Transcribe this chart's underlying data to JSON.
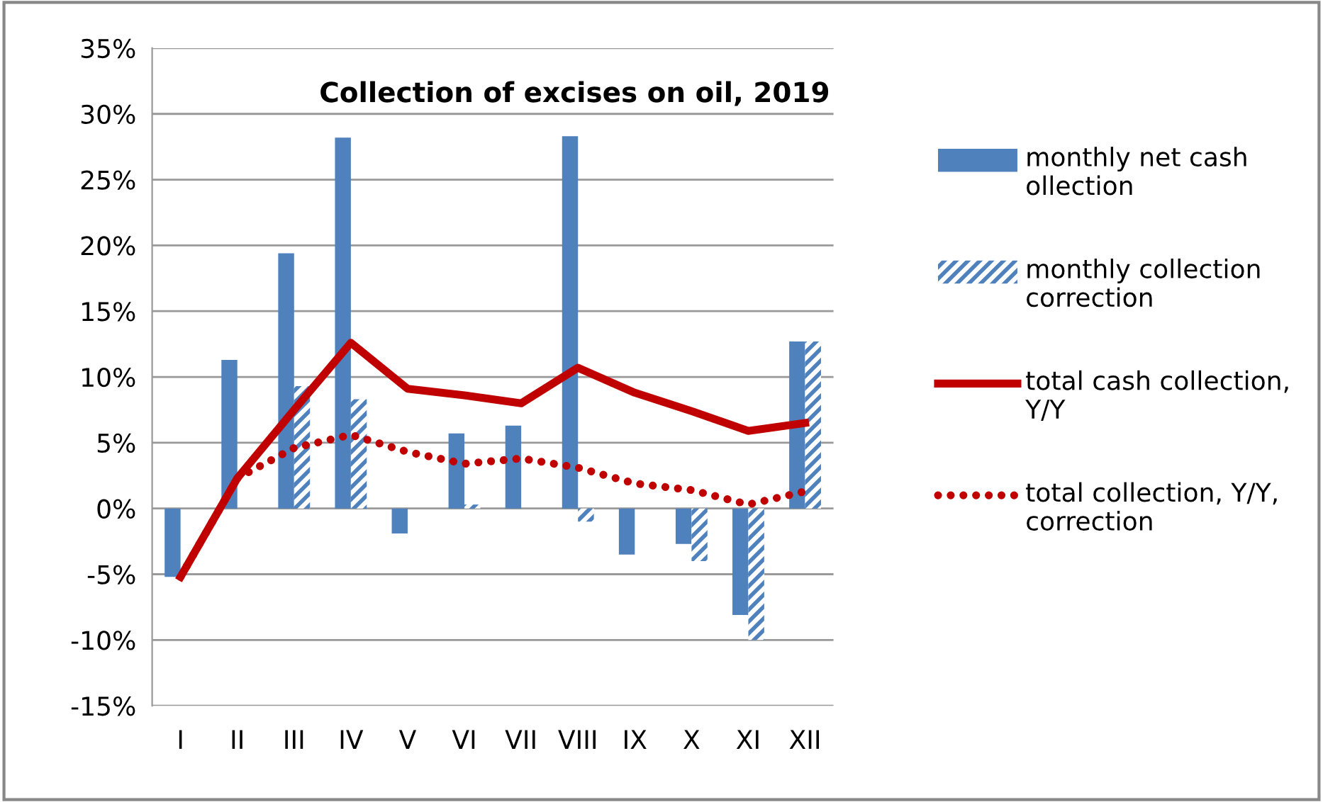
{
  "chart_data": {
    "type": "bar",
    "title": "Collection of excises on oil, 2019",
    "categories": [
      "I",
      "II",
      "III",
      "IV",
      "V",
      "VI",
      "VII",
      "VIII",
      "IX",
      "X",
      "XI",
      "XII"
    ],
    "series": [
      {
        "name": "monthly net cash ollection",
        "color": "#4f81bd",
        "values": [
          -5.2,
          11.3,
          19.4,
          28.2,
          -1.9,
          5.7,
          6.3,
          28.3,
          -3.5,
          -2.7,
          -8.1,
          12.7
        ]
      },
      {
        "name": "monthly collection correction",
        "color": "#4f81bd",
        "values": [
          null,
          null,
          9.3,
          8.3,
          null,
          0.3,
          null,
          -1.0,
          null,
          -4.0,
          -10.0,
          12.7
        ]
      },
      {
        "name": "total cash collection, Y/Y",
        "type": "line",
        "color": "#c00000",
        "line_style": "solid",
        "values": [
          -5.2,
          2.3,
          7.5,
          12.6,
          9.1,
          8.6,
          8.0,
          10.7,
          8.8,
          7.4,
          5.9,
          6.5
        ]
      },
      {
        "name": "total collection, Y/Y, correction",
        "type": "line",
        "color": "#c00000",
        "line_style": "dotted",
        "values": [
          -5.2,
          2.3,
          4.6,
          5.6,
          4.3,
          3.4,
          3.8,
          3.1,
          1.9,
          1.4,
          0.3,
          1.3
        ]
      }
    ],
    "ylim": [
      -15,
      35
    ],
    "yticks": [
      {
        "value": -15,
        "label": "-15%"
      },
      {
        "value": -10,
        "label": "-10%"
      },
      {
        "value": -5,
        "label": "-5%"
      },
      {
        "value": 0,
        "label": "0%"
      },
      {
        "value": 5,
        "label": "5%"
      },
      {
        "value": 10,
        "label": "10%"
      },
      {
        "value": 15,
        "label": "15%"
      },
      {
        "value": 20,
        "label": "20%"
      },
      {
        "value": 25,
        "label": "25%"
      },
      {
        "value": 30,
        "label": "30%"
      },
      {
        "value": 35,
        "label": "35%"
      }
    ],
    "grid": "y",
    "legend": "right"
  }
}
